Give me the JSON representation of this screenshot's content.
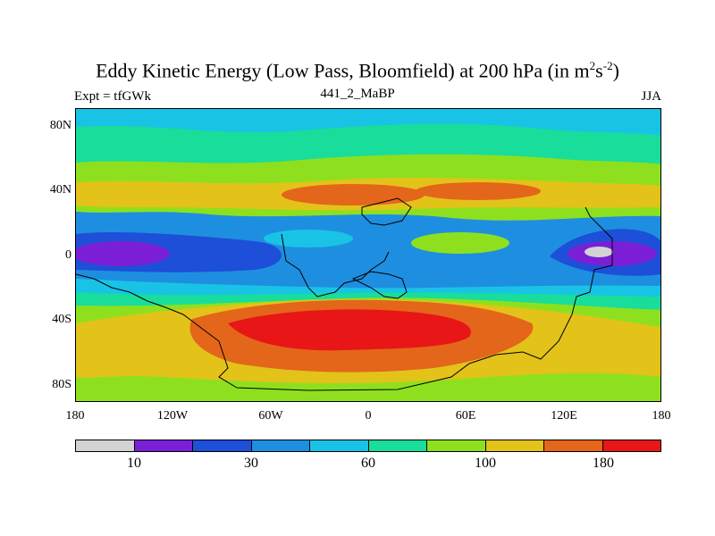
{
  "title": {
    "main": "Eddy Kinetic Energy (Low Pass, Bloomfield) at 200 hPa (in m",
    "sup1": "2",
    "mid": "s",
    "sup2": "-2",
    "end": ")"
  },
  "subtitle": {
    "left": "Expt = tfGWk",
    "center": "441_2_MaBP",
    "right": "JJA"
  },
  "axes": {
    "y_ticks": [
      "80N",
      "40N",
      "0",
      "40S",
      "80S"
    ],
    "x_ticks": [
      "180",
      "120W",
      "60W",
      "0",
      "60E",
      "120E",
      "180"
    ]
  },
  "colorbar": {
    "colors": [
      "#d3d3d3",
      "#7b1fd6",
      "#1d4fd8",
      "#1e8fe0",
      "#19c3e6",
      "#19dd9a",
      "#8ee01e",
      "#e3c21a",
      "#e3661a",
      "#e81616"
    ],
    "labels": [
      "10",
      "30",
      "60",
      "100",
      "180"
    ]
  }
}
